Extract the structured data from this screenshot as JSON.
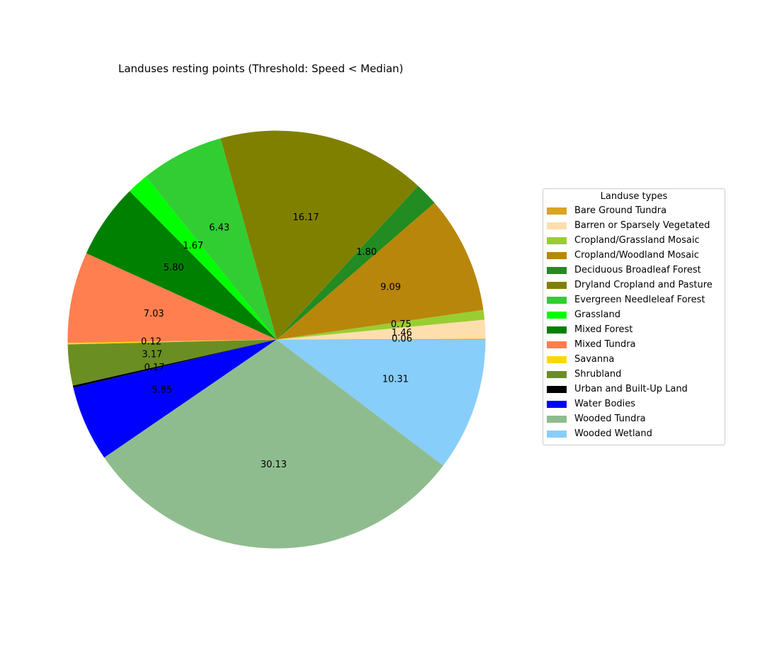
{
  "chart_data": {
    "type": "pie",
    "title": "Landuses resting points (Threshold: Speed < Median)",
    "legend_title": "Landuse types",
    "legend_position": "right",
    "slices": [
      {
        "label": "Bare Ground Tundra",
        "value": 0.06,
        "display": "0.06",
        "color": "#DAA520"
      },
      {
        "label": "Barren or Sparsely Vegetated",
        "value": 1.46,
        "display": "1.46",
        "color": "#FFDEAD"
      },
      {
        "label": "Cropland/Grassland Mosaic",
        "value": 0.75,
        "display": "0.75",
        "color": "#9ACD32"
      },
      {
        "label": "Cropland/Woodland Mosaic",
        "value": 9.09,
        "display": "9.09",
        "color": "#B8860B"
      },
      {
        "label": "Deciduous Broadleaf Forest",
        "value": 1.8,
        "display": "1.80",
        "color": "#228B22"
      },
      {
        "label": "Dryland Cropland and Pasture",
        "value": 16.17,
        "display": "16.17",
        "color": "#808000"
      },
      {
        "label": "Evergreen Needleleaf Forest",
        "value": 6.43,
        "display": "6.43",
        "color": "#32CD32"
      },
      {
        "label": "Grassland",
        "value": 1.67,
        "display": "1.67",
        "color": "#00FF00"
      },
      {
        "label": "Mixed Forest",
        "value": 5.8,
        "display": "5.80",
        "color": "#008000"
      },
      {
        "label": "Mixed Tundra",
        "value": 7.03,
        "display": "7.03",
        "color": "#FF7F50"
      },
      {
        "label": "Savanna",
        "value": 0.12,
        "display": "0.12",
        "color": "#FFD700"
      },
      {
        "label": "Shrubland",
        "value": 3.17,
        "display": "3.17",
        "color": "#6B8E23"
      },
      {
        "label": "Urban and Built-Up Land",
        "value": 0.17,
        "display": "0.17",
        "color": "#000000"
      },
      {
        "label": "Water Bodies",
        "value": 5.85,
        "display": "5.85",
        "color": "#0000FF"
      },
      {
        "label": "Wooded Tundra",
        "value": 30.13,
        "display": "30.13",
        "color": "#8FBC8F"
      },
      {
        "label": "Wooded Wetland",
        "value": 10.31,
        "display": "10.31",
        "color": "#87CEFA"
      }
    ]
  }
}
